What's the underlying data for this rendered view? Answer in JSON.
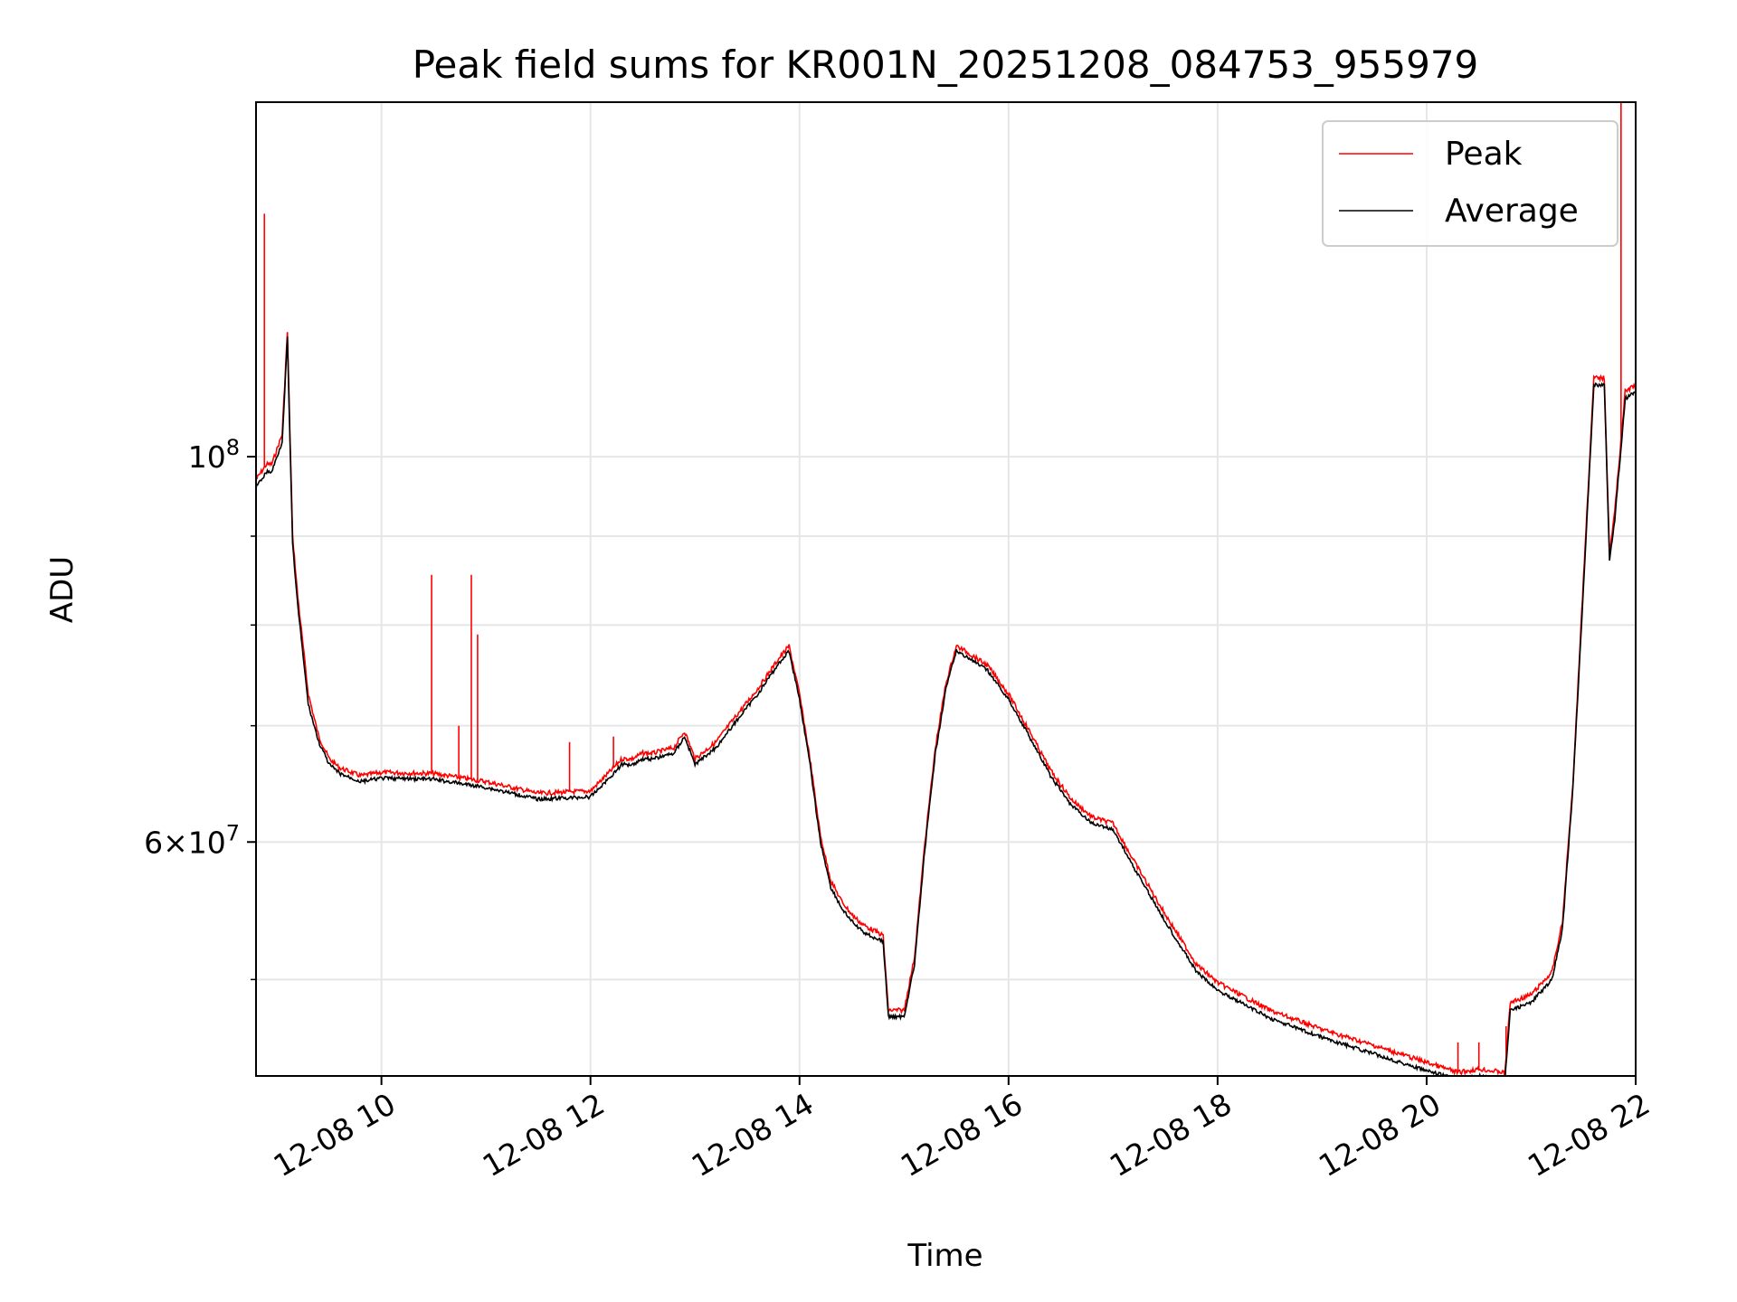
{
  "chart_data": {
    "type": "line",
    "title": "Peak field sums for KR001N_20251208_084753_955979",
    "xlabel": "Time",
    "ylabel": "ADU",
    "x_unit": "hours (2025-12-08)",
    "xlim": [
      8.8,
      22.0
    ],
    "yscale": "log",
    "ylim": [
      44000000.0,
      160000000.0
    ],
    "x_ticks": [
      {
        "value": 10,
        "label": "12-08 10"
      },
      {
        "value": 12,
        "label": "12-08 12"
      },
      {
        "value": 14,
        "label": "12-08 14"
      },
      {
        "value": 16,
        "label": "12-08 16"
      },
      {
        "value": 18,
        "label": "12-08 18"
      },
      {
        "value": 20,
        "label": "12-08 20"
      },
      {
        "value": 22,
        "label": "12-08 22"
      }
    ],
    "y_major_ticks": [
      {
        "value": 60000000.0,
        "label_base": "6×10",
        "label_exp": "7"
      },
      {
        "value": 100000000.0,
        "label_base": "10",
        "label_exp": "8"
      }
    ],
    "y_minor_ticks": [
      50000000.0,
      70000000.0,
      80000000.0,
      90000000.0
    ],
    "grid": true,
    "legend_position": "top-right",
    "series": [
      {
        "name": "Peak",
        "color": "#ff0000",
        "x": [
          8.8,
          8.9,
          8.95,
          9.05,
          9.1,
          9.15,
          9.2,
          9.3,
          9.4,
          9.5,
          9.6,
          9.8,
          10.0,
          10.5,
          11.0,
          11.5,
          12.0,
          12.2,
          12.3,
          12.4,
          12.5,
          12.6,
          12.8,
          12.9,
          13.0,
          13.2,
          13.4,
          13.6,
          13.8,
          13.9,
          14.0,
          14.1,
          14.2,
          14.3,
          14.4,
          14.5,
          14.6,
          14.7,
          14.8,
          14.85,
          15.0,
          15.1,
          15.2,
          15.3,
          15.4,
          15.5,
          15.6,
          15.8,
          16.0,
          16.2,
          16.4,
          16.6,
          16.8,
          17.0,
          17.2,
          17.5,
          17.8,
          18.0,
          18.5,
          19.0,
          19.5,
          20.0,
          20.3,
          20.5,
          20.75,
          20.8,
          21.0,
          21.2,
          21.3,
          21.4,
          21.5,
          21.6,
          21.7,
          21.75,
          21.8,
          21.9,
          22.0
        ],
        "y": [
          97000000.0,
          99000000.0,
          99000000.0,
          103000000.0,
          118000000.0,
          90000000.0,
          83000000.0,
          73000000.0,
          69000000.0,
          67000000.0,
          66200000.0,
          65500000.0,
          65800000.0,
          65700000.0,
          65000000.0,
          64000000.0,
          64200000.0,
          66000000.0,
          67000000.0,
          67000000.0,
          67500000.0,
          67500000.0,
          68000000.0,
          69500000.0,
          67000000.0,
          68500000.0,
          71000000.0,
          73500000.0,
          76500000.0,
          77800000.0,
          73000000.0,
          67000000.0,
          60500000.0,
          57000000.0,
          55500000.0,
          54500000.0,
          53800000.0,
          53400000.0,
          53000000.0,
          48000000.0,
          48000000.0,
          51500000.0,
          60000000.0,
          68000000.0,
          74000000.0,
          77800000.0,
          77200000.0,
          75800000.0,
          73000000.0,
          69500000.0,
          66000000.0,
          63500000.0,
          62000000.0,
          61500000.0,
          58500000.0,
          54500000.0,
          51000000.0,
          49800000.0,
          48000000.0,
          46800000.0,
          45800000.0,
          44800000.0,
          44200000.0,
          44400000.0,
          44200000.0,
          48500000.0,
          49000000.0,
          50500000.0,
          54000000.0,
          65000000.0,
          85000000.0,
          111000000.0,
          111000000.0,
          88000000.0,
          93000000.0,
          109000000.0,
          110000000.0
        ]
      },
      {
        "name": "Average",
        "color": "#000000",
        "x": [
          8.8,
          8.9,
          8.95,
          9.05,
          9.1,
          9.15,
          9.2,
          9.3,
          9.4,
          9.5,
          9.6,
          9.8,
          10.0,
          10.5,
          11.0,
          11.5,
          12.0,
          12.2,
          12.3,
          12.4,
          12.5,
          12.6,
          12.8,
          12.9,
          13.0,
          13.2,
          13.4,
          13.6,
          13.8,
          13.9,
          14.0,
          14.1,
          14.2,
          14.3,
          14.4,
          14.5,
          14.6,
          14.7,
          14.8,
          14.85,
          15.0,
          15.1,
          15.2,
          15.3,
          15.4,
          15.5,
          15.6,
          15.8,
          16.0,
          16.2,
          16.4,
          16.6,
          16.8,
          17.0,
          17.2,
          17.5,
          17.8,
          18.0,
          18.5,
          19.0,
          19.5,
          20.0,
          20.3,
          20.5,
          20.75,
          20.8,
          21.0,
          21.2,
          21.3,
          21.4,
          21.5,
          21.6,
          21.7,
          21.75,
          21.8,
          21.9,
          22.0
        ],
        "y": [
          96000000.0,
          98000000.0,
          98000000.0,
          102000000.0,
          117000000.0,
          89000000.0,
          82000000.0,
          72000000.0,
          68500000.0,
          66500000.0,
          65700000.0,
          65000000.0,
          65300000.0,
          65200000.0,
          64500000.0,
          63500000.0,
          63700000.0,
          65500000.0,
          66500000.0,
          66500000.0,
          67000000.0,
          67000000.0,
          67500000.0,
          69000000.0,
          66500000.0,
          68000000.0,
          70500000.0,
          73000000.0,
          76000000.0,
          77300000.0,
          72500000.0,
          66500000.0,
          60000000.0,
          56500000.0,
          55000000.0,
          54000000.0,
          53300000.0,
          52900000.0,
          52600000.0,
          47600000.0,
          47600000.0,
          51000000.0,
          59500000.0,
          67500000.0,
          73500000.0,
          77300000.0,
          76700000.0,
          75300000.0,
          72500000.0,
          69000000.0,
          65500000.0,
          63000000.0,
          61500000.0,
          61000000.0,
          58000000.0,
          54000000.0,
          50500000.0,
          49300000.0,
          47500000.0,
          46300000.0,
          45300000.0,
          44300000.0,
          43800000.0,
          44000000.0,
          43800000.0,
          48000000.0,
          48500000.0,
          50000000.0,
          53500000.0,
          64500000.0,
          84000000.0,
          110000000.0,
          110000000.0,
          87000000.0,
          92000000.0,
          108000000.0,
          109000000.0
        ]
      }
    ],
    "peak_spikes": [
      {
        "x": 8.88,
        "y": 138000000.0
      },
      {
        "x": 10.48,
        "y": 85500000.0
      },
      {
        "x": 10.74,
        "y": 70000000.0
      },
      {
        "x": 10.86,
        "y": 85500000.0
      },
      {
        "x": 10.92,
        "y": 79000000.0
      },
      {
        "x": 11.8,
        "y": 68500000.0
      },
      {
        "x": 12.22,
        "y": 69000000.0
      },
      {
        "x": 20.3,
        "y": 46000000.0
      },
      {
        "x": 20.5,
        "y": 46000000.0
      },
      {
        "x": 20.76,
        "y": 47000000.0
      },
      {
        "x": 21.86,
        "y": 160000000.0
      }
    ]
  }
}
